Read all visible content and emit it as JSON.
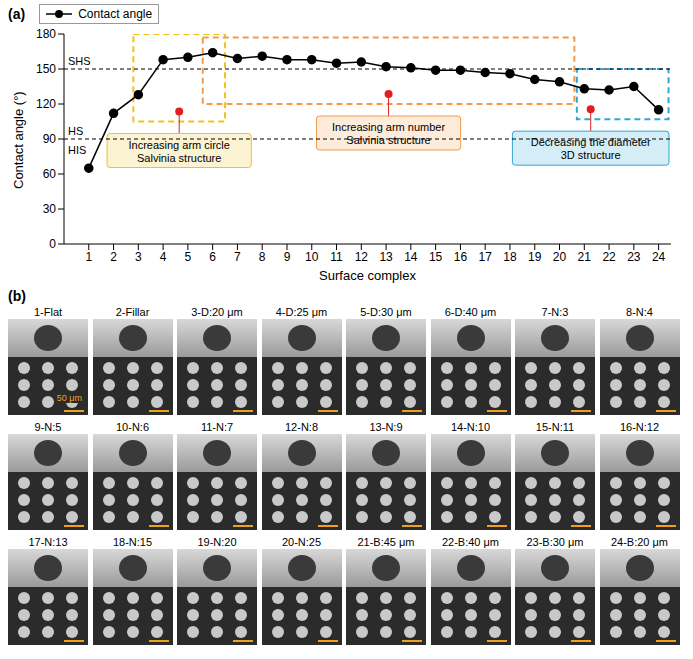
{
  "chart_data": {
    "type": "line",
    "panel": "(a)",
    "x_label": "Surface complex",
    "y_label": "Contact angle (°)",
    "x": [
      1,
      2,
      3,
      4,
      5,
      6,
      7,
      8,
      9,
      10,
      11,
      12,
      13,
      14,
      15,
      16,
      17,
      18,
      19,
      20,
      21,
      22,
      23,
      24
    ],
    "series": [
      {
        "name": "Contact angle",
        "color": "#000000",
        "marker": "circle",
        "values": [
          65,
          112,
          128,
          158,
          160,
          164,
          159,
          161,
          158,
          158,
          155,
          156,
          152,
          151,
          149,
          149,
          147,
          146,
          141,
          139,
          133,
          132,
          135,
          115
        ]
      }
    ],
    "xlim": [
      0,
      24.5
    ],
    "xticks": [
      1,
      2,
      3,
      4,
      5,
      6,
      7,
      8,
      9,
      10,
      11,
      12,
      13,
      14,
      15,
      16,
      17,
      18,
      19,
      20,
      21,
      22,
      23,
      24
    ],
    "ylim": [
      0,
      180
    ],
    "yticks": [
      0,
      30,
      60,
      90,
      120,
      150,
      180
    ],
    "grid": false,
    "legend": "top-left",
    "reference_lines": [
      {
        "y": 150,
        "label": "SHS"
      },
      {
        "y": 90,
        "label": "HS",
        "below_label": "HIS"
      }
    ],
    "regions": [
      {
        "x1": 2.8,
        "x2": 6.5,
        "y1": 105,
        "y2": 180,
        "color": "#f2c11c",
        "label": [
          "Increasing arm circle",
          "Salvinia structure"
        ]
      },
      {
        "x1": 5.6,
        "x2": 20.6,
        "y1": 120,
        "y2": 177,
        "color": "#f39a4c",
        "label": [
          "Increasing arm number",
          "Salvinia structure"
        ]
      },
      {
        "x1": 20.7,
        "x2": 24.4,
        "y1": 107,
        "y2": 150,
        "color": "#2ea6d8",
        "label": [
          "Decreasing the diameter",
          "3D structure"
        ]
      }
    ]
  },
  "panel_b": {
    "panel": "(b)",
    "tiles": [
      {
        "label": "1-Flat",
        "scale_bar": "50 μm"
      },
      {
        "label": "2-Fillar"
      },
      {
        "label": "3-D:20 μm"
      },
      {
        "label": "4-D:25 μm"
      },
      {
        "label": "5-D:30 μm"
      },
      {
        "label": "6-D:40 μm"
      },
      {
        "label": "7-N:3"
      },
      {
        "label": "8-N:4"
      },
      {
        "label": "9-N:5"
      },
      {
        "label": "10-N:6"
      },
      {
        "label": "11-N:7"
      },
      {
        "label": "12-N:8"
      },
      {
        "label": "13-N:9"
      },
      {
        "label": "14-N:10"
      },
      {
        "label": "15-N:11"
      },
      {
        "label": "16-N:12"
      },
      {
        "label": "17-N:13"
      },
      {
        "label": "18-N:15"
      },
      {
        "label": "19-N:20"
      },
      {
        "label": "20-N:25"
      },
      {
        "label": "21-B:45 μm"
      },
      {
        "label": "22-B:40 μm"
      },
      {
        "label": "23-B:30 μm"
      },
      {
        "label": "24-B:20 μm"
      }
    ]
  }
}
